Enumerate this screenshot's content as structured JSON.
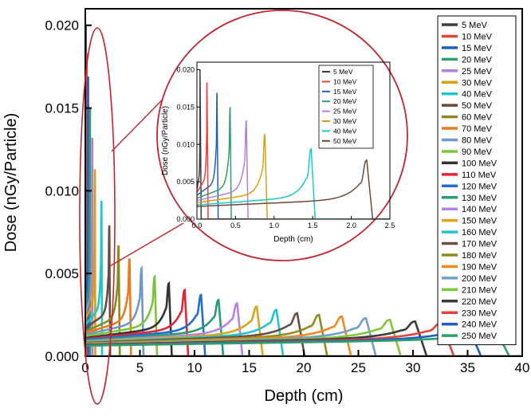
{
  "chart_data": [
    {
      "type": "line",
      "title": "",
      "xlabel": "Depth (cm)",
      "ylabel": "Dose (nGy/Particle)",
      "xlim": [
        0,
        40
      ],
      "ylim": [
        0,
        0.021
      ],
      "xticks": [
        0,
        5,
        10,
        15,
        20,
        25,
        30,
        35,
        40
      ],
      "xtick_labels": [
        "0",
        "5",
        "10",
        "15",
        "20",
        "25",
        "30",
        "35",
        "40"
      ],
      "yticks": [
        0,
        0.005,
        0.01,
        0.015,
        0.02
      ],
      "ytick_labels": [
        "0.000",
        "0.005",
        "0.010",
        "0.015",
        "0.020"
      ],
      "grid": false,
      "legend_position": "top-right",
      "series": [
        {
          "name": "5 MeV",
          "color": "#3d3d3d",
          "entrance": 0.004,
          "peak_depth": 0.04,
          "peak": 0.02
        },
        {
          "name": "10 MeV",
          "color": "#e8413c",
          "entrance": 0.0036,
          "peak_depth": 0.13,
          "peak": 0.0183
        },
        {
          "name": "15 MeV",
          "color": "#1f5fc4",
          "entrance": 0.0032,
          "peak_depth": 0.26,
          "peak": 0.0169
        },
        {
          "name": "20 MeV",
          "color": "#2e9e6a",
          "entrance": 0.0028,
          "peak_depth": 0.43,
          "peak": 0.015
        },
        {
          "name": "25 MeV",
          "color": "#b27fd9",
          "entrance": 0.0025,
          "peak_depth": 0.64,
          "peak": 0.0132
        },
        {
          "name": "30 MeV",
          "color": "#d4a017",
          "entrance": 0.0022,
          "peak_depth": 0.88,
          "peak": 0.0113
        },
        {
          "name": "40 MeV",
          "color": "#1ec8c8",
          "entrance": 0.0019,
          "peak_depth": 1.48,
          "peak": 0.0094
        },
        {
          "name": "50 MeV",
          "color": "#6b4a3a",
          "entrance": 0.0017,
          "peak_depth": 2.2,
          "peak": 0.0079
        },
        {
          "name": "60 MeV",
          "color": "#8a8a1e",
          "entrance": 0.0015,
          "peak_depth": 3.05,
          "peak": 0.0067
        },
        {
          "name": "70 MeV",
          "color": "#ee7a1e",
          "entrance": 0.0014,
          "peak_depth": 4.05,
          "peak": 0.0059
        },
        {
          "name": "80 MeV",
          "color": "#6f98c8",
          "entrance": 0.0013,
          "peak_depth": 5.15,
          "peak": 0.0053
        },
        {
          "name": "90 MeV",
          "color": "#7cc43a",
          "entrance": 0.0012,
          "peak_depth": 6.35,
          "peak": 0.0048
        },
        {
          "name": "100 MeV",
          "color": "#333333",
          "entrance": 0.0011,
          "peak_depth": 7.65,
          "peak": 0.0044
        },
        {
          "name": "110 MeV",
          "color": "#e32636",
          "entrance": 0.00105,
          "peak_depth": 9.1,
          "peak": 0.004
        },
        {
          "name": "120 MeV",
          "color": "#1f6fd1",
          "entrance": 0.001,
          "peak_depth": 10.6,
          "peak": 0.0037
        },
        {
          "name": "130 MeV",
          "color": "#2a9d6f",
          "entrance": 0.00095,
          "peak_depth": 12.2,
          "peak": 0.0034
        },
        {
          "name": "140 MeV",
          "color": "#b584e3",
          "entrance": 0.0009,
          "peak_depth": 13.9,
          "peak": 0.0032
        },
        {
          "name": "150 MeV",
          "color": "#d9a61c",
          "entrance": 0.00087,
          "peak_depth": 15.7,
          "peak": 0.003
        },
        {
          "name": "160 MeV",
          "color": "#21c6cc",
          "entrance": 0.00084,
          "peak_depth": 17.5,
          "peak": 0.0028
        },
        {
          "name": "170 MeV",
          "color": "#6e4c3e",
          "entrance": 0.00081,
          "peak_depth": 19.4,
          "peak": 0.0026
        },
        {
          "name": "180 MeV",
          "color": "#8d8c1f",
          "entrance": 0.00078,
          "peak_depth": 21.4,
          "peak": 0.0025
        },
        {
          "name": "190 MeV",
          "color": "#f08a1e",
          "entrance": 0.00076,
          "peak_depth": 23.5,
          "peak": 0.0024
        },
        {
          "name": "200 MeV",
          "color": "#6fa0cc",
          "entrance": 0.00074,
          "peak_depth": 25.7,
          "peak": 0.0023
        },
        {
          "name": "210 MeV",
          "color": "#7ec83c",
          "entrance": 0.00072,
          "peak_depth": 27.9,
          "peak": 0.0022
        },
        {
          "name": "220 MeV",
          "color": "#3a3a3a",
          "entrance": 0.0007,
          "peak_depth": 30.2,
          "peak": 0.0021
        },
        {
          "name": "230 MeV",
          "color": "#e8413c",
          "entrance": 0.00068,
          "peak_depth": 32.6,
          "peak": 0.002
        },
        {
          "name": "240 MeV",
          "color": "#1f5fc4",
          "entrance": 0.00066,
          "peak_depth": 35.0,
          "peak": 0.0019
        },
        {
          "name": "250 MeV",
          "color": "#2e9e6a",
          "entrance": 0.00064,
          "peak_depth": 37.5,
          "peak": 0.0017
        }
      ]
    },
    {
      "type": "line",
      "title": "",
      "xlabel": "Depth (cm)",
      "ylabel": "Dose (nGy/Particle)",
      "xlim": [
        0,
        2.5
      ],
      "ylim": [
        0,
        0.021
      ],
      "xticks": [
        0,
        0.5,
        1.0,
        1.5,
        2.0,
        2.5
      ],
      "xtick_labels": [
        "0.0",
        "0.5",
        "1.0",
        "1.5",
        "2.0",
        "2.5"
      ],
      "yticks": [
        0,
        0.005,
        0.01,
        0.015,
        0.02
      ],
      "ytick_labels": [
        "0.000",
        "0.005",
        "0.010",
        "0.015",
        "0.020"
      ],
      "grid": false,
      "legend_position": "top-right",
      "series_names": [
        "5 MeV",
        "10 MeV",
        "15 MeV",
        "20 MeV",
        "25 MeV",
        "30 MeV",
        "40 MeV",
        "50 MeV"
      ]
    }
  ],
  "colors": {
    "zoom_ring": "#c0262d",
    "axis": "#000000",
    "background": "#ffffff"
  }
}
